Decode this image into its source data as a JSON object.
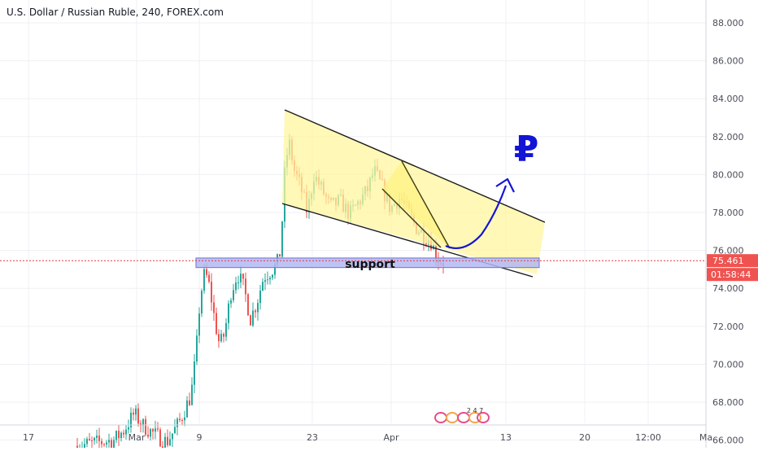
{
  "header": {
    "title": "U.S. Dollar / Russian Ruble, 240, FOREX.com"
  },
  "chart_data": {
    "type": "candlestick",
    "title": "U.S. Dollar / Russian Ruble, 240, FOREX.com",
    "ylim": [
      65.6,
      89.2
    ],
    "y_ticks": [
      "66.000",
      "68.000",
      "70.000",
      "72.000",
      "74.000",
      "76.000",
      "78.000",
      "80.000",
      "82.000",
      "84.000",
      "86.000",
      "88.000"
    ],
    "x_ticks": [
      "17",
      "Mar",
      "9",
      "23",
      "Apr",
      "13",
      "20",
      "12:00",
      "Ma"
    ],
    "current_price_label": "75.461",
    "current_price": 75.461,
    "countdown_label": "01:58:44",
    "support_label": "support",
    "support_zone": [
      75.1,
      75.6
    ],
    "currency_symbol": "₽",
    "watermark_text": "2 4 7",
    "colors": {
      "up": "#26a69a",
      "down": "#ef5350",
      "price_line": "#e53935",
      "countdown_bg": "#ef5350",
      "channel_fill": "#fff59d",
      "support_fill": "#b3b7f2",
      "support_border": "#7d82d9",
      "arrow": "#1414d6",
      "grid": "#eef0f3",
      "axis_text": "#4a4e58"
    }
  }
}
